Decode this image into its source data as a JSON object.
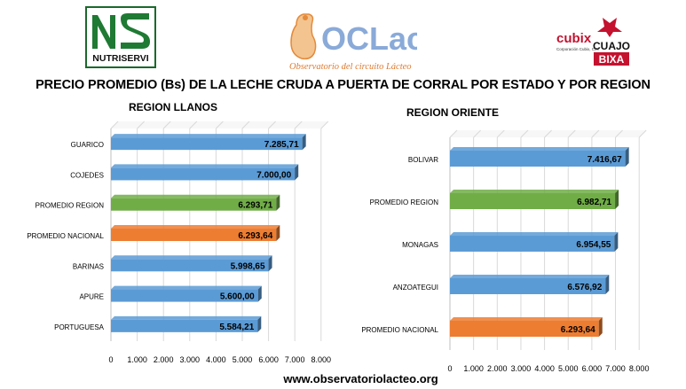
{
  "title": "PRECIO PROMEDIO (Bs) DE LA LECHE CRUDA A PUERTA DE CORRAL POR ESTADO Y POR REGION",
  "footer": "www.observatoriolacteo.org",
  "logos": {
    "nutriservi": "NUTRISERVI",
    "oclac": "OCLac",
    "oclac_sub": "Observatorio del circuito Lácteo",
    "cubix": "cubix",
    "cubix_sub": "Corporación Cubix, C.A.",
    "cuajo": "CUAJO",
    "bixa": "BIXA"
  },
  "colors": {
    "blue": "#5B9BD5",
    "green": "#70AD47",
    "orange": "#ED7D31"
  },
  "chart_data": [
    {
      "type": "bar",
      "orientation": "horizontal",
      "title": "REGION LLANOS",
      "categories": [
        "GUARICO",
        "COJEDES",
        "PROMEDIO REGION",
        "PROMEDIO NACIONAL",
        "BARINAS",
        "APURE",
        "PORTUGUESA"
      ],
      "values": [
        7285.71,
        7000.0,
        6293.71,
        6293.64,
        5998.65,
        5600.0,
        5584.21
      ],
      "labels": [
        "7.285,71",
        "7.000,00",
        "6.293,71",
        "6.293,64",
        "5.998,65",
        "5.600,00",
        "5.584,21"
      ],
      "bar_colors": [
        "blue",
        "blue",
        "green",
        "orange",
        "blue",
        "blue",
        "blue"
      ],
      "xlim": [
        0,
        8000
      ],
      "ticks": [
        "0",
        "1.000",
        "2.000",
        "3.000",
        "4.000",
        "5.000",
        "6.000",
        "7.000",
        "8.000"
      ],
      "grid": true
    },
    {
      "type": "bar",
      "orientation": "horizontal",
      "title": "REGION ORIENTE",
      "categories": [
        "BOLIVAR",
        "PROMEDIO REGION",
        "MONAGAS",
        "ANZOATEGUI",
        "PROMEDIO NACIONAL"
      ],
      "values": [
        7416.67,
        6982.71,
        6954.55,
        6576.92,
        6293.64
      ],
      "labels": [
        "7.416,67",
        "6.982,71",
        "6.954,55",
        "6.576,92",
        "6.293,64"
      ],
      "bar_colors": [
        "blue",
        "green",
        "blue",
        "blue",
        "orange"
      ],
      "xlim": [
        0,
        8000
      ],
      "ticks": [
        "0",
        "1.000",
        "2.000",
        "3.000",
        "4.000",
        "5.000",
        "6.000",
        "7.000",
        "8.000"
      ],
      "grid": true
    }
  ]
}
